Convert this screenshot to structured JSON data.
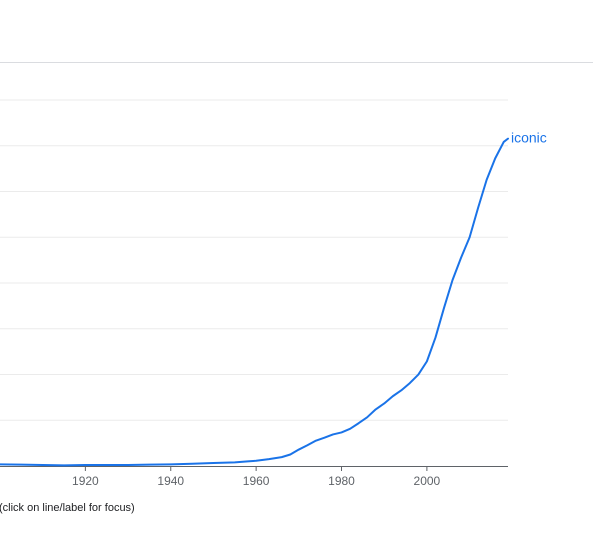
{
  "chart_data": {
    "type": "line",
    "title": "",
    "xlabel": "",
    "ylabel": "",
    "x_ticks": [
      1920,
      1940,
      1960,
      1980,
      2000
    ],
    "xlim": [
      1900,
      2019
    ],
    "ylim": [
      0,
      1
    ],
    "grid": true,
    "series": [
      {
        "name": "iconic",
        "color": "#1a73e8",
        "x": [
          1900,
          1905,
          1910,
          1915,
          1920,
          1925,
          1930,
          1935,
          1940,
          1945,
          1950,
          1955,
          1958,
          1960,
          1963,
          1966,
          1968,
          1970,
          1972,
          1974,
          1976,
          1978,
          1980,
          1982,
          1984,
          1986,
          1988,
          1990,
          1992,
          1994,
          1996,
          1998,
          2000,
          2002,
          2004,
          2006,
          2008,
          2010,
          2012,
          2014,
          2016,
          2018,
          2019
        ],
        "y": [
          0.005,
          0.004,
          0.003,
          0.002,
          0.003,
          0.003,
          0.003,
          0.004,
          0.005,
          0.007,
          0.009,
          0.011,
          0.014,
          0.016,
          0.021,
          0.027,
          0.035,
          0.05,
          0.063,
          0.077,
          0.086,
          0.096,
          0.102,
          0.113,
          0.13,
          0.148,
          0.172,
          0.19,
          0.212,
          0.23,
          0.252,
          0.278,
          0.318,
          0.39,
          0.48,
          0.565,
          0.633,
          0.695,
          0.785,
          0.87,
          0.935,
          0.985,
          0.995
        ]
      }
    ]
  },
  "footer": {
    "hint": "(click on line/label for focus)"
  }
}
